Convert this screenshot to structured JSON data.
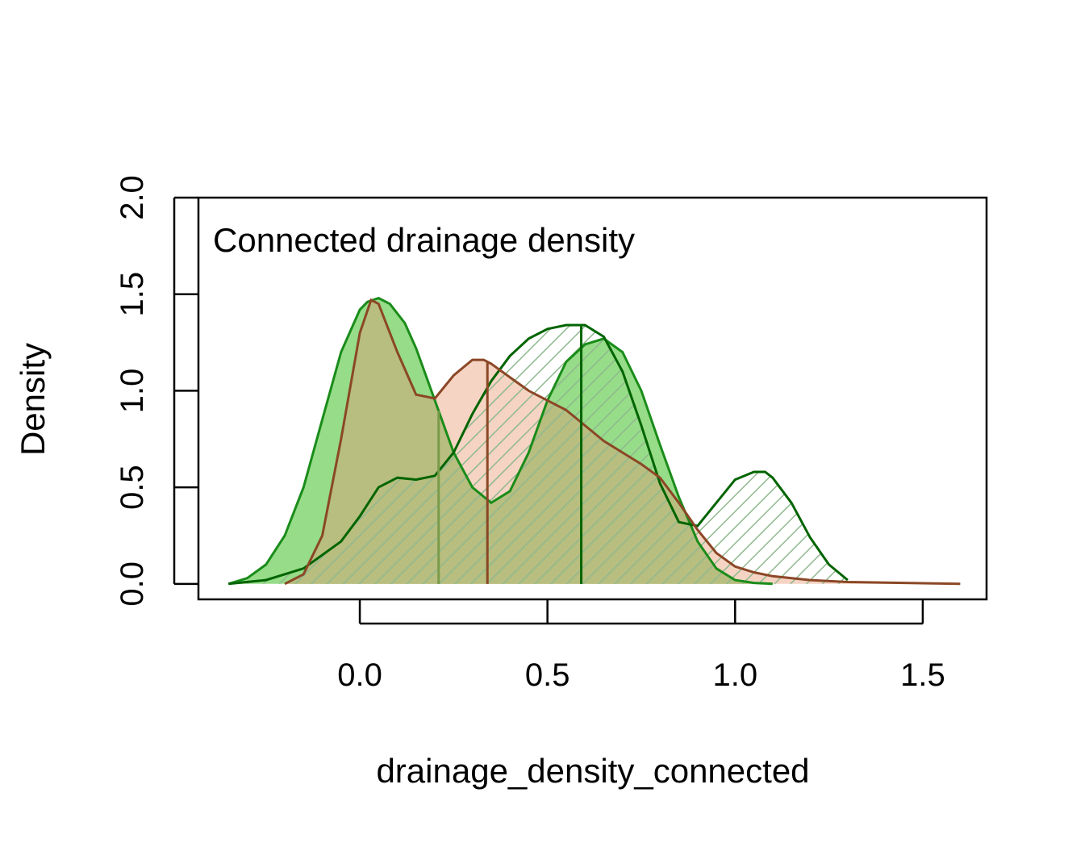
{
  "chart_data": {
    "type": "area",
    "title": "Connected drainage density",
    "xlabel": "drainage_density_connected",
    "ylabel": "Density",
    "xlim": [
      -0.43,
      1.67
    ],
    "ylim": [
      -0.08,
      2.0
    ],
    "xticks": [
      0.0,
      0.5,
      1.0,
      1.5
    ],
    "xtick_labels": [
      "0.0",
      "0.5",
      "1.0",
      "1.5"
    ],
    "yticks": [
      0.0,
      0.5,
      1.0,
      1.5,
      2.0
    ],
    "ytick_labels": [
      "0.0",
      "0.5",
      "1.0",
      "1.5",
      "2.0"
    ],
    "legend": "none",
    "grid": false,
    "colors": {
      "green_dark": "#1a8c1a",
      "green_fill": "#7dd36a",
      "dark_green": "#006400",
      "hatch_green": "#8fb88f",
      "brown": "#8b4726",
      "brown_fill": "#f3cdb8",
      "olive_overlap": "#b7be7f",
      "olive_line": "#7a9a4a"
    },
    "series": [
      {
        "style": "solid green fill",
        "line_color": "#1a8c1a",
        "fill_color": "#7dd36a",
        "x": [
          -0.35,
          -0.3,
          -0.25,
          -0.2,
          -0.15,
          -0.1,
          -0.05,
          0.0,
          0.02,
          0.05,
          0.08,
          0.12,
          0.15,
          0.2,
          0.25,
          0.3,
          0.35,
          0.4,
          0.45,
          0.5,
          0.55,
          0.6,
          0.65,
          0.7,
          0.75,
          0.8,
          0.85,
          0.9,
          0.95,
          1.0,
          1.05,
          1.1
        ],
        "y": [
          0.0,
          0.03,
          0.1,
          0.25,
          0.5,
          0.85,
          1.2,
          1.42,
          1.46,
          1.48,
          1.45,
          1.35,
          1.22,
          0.95,
          0.68,
          0.5,
          0.42,
          0.48,
          0.68,
          0.95,
          1.15,
          1.24,
          1.27,
          1.2,
          1.0,
          0.72,
          0.45,
          0.22,
          0.08,
          0.02,
          0.005,
          0.0
        ],
        "median": 0.21
      },
      {
        "style": "hatched dark green",
        "line_color": "#006400",
        "fill_color": "#8fb88f",
        "x": [
          -0.35,
          -0.25,
          -0.15,
          -0.05,
          0.0,
          0.05,
          0.1,
          0.15,
          0.2,
          0.25,
          0.3,
          0.35,
          0.4,
          0.45,
          0.5,
          0.55,
          0.6,
          0.65,
          0.7,
          0.75,
          0.8,
          0.85,
          0.9,
          0.95,
          1.0,
          1.05,
          1.08,
          1.1,
          1.15,
          1.2,
          1.25,
          1.3
        ],
        "y": [
          0.0,
          0.02,
          0.08,
          0.22,
          0.35,
          0.5,
          0.55,
          0.54,
          0.56,
          0.68,
          0.88,
          1.05,
          1.18,
          1.27,
          1.32,
          1.34,
          1.34,
          1.28,
          1.1,
          0.82,
          0.52,
          0.32,
          0.3,
          0.42,
          0.54,
          0.58,
          0.58,
          0.55,
          0.42,
          0.24,
          0.1,
          0.02
        ],
        "median": 0.59
      },
      {
        "style": "light salmon fill",
        "line_color": "#8b4726",
        "fill_color": "#f3cdb8",
        "x": [
          -0.2,
          -0.15,
          -0.1,
          -0.05,
          0.0,
          0.03,
          0.05,
          0.1,
          0.15,
          0.2,
          0.25,
          0.3,
          0.33,
          0.35,
          0.4,
          0.45,
          0.5,
          0.55,
          0.6,
          0.65,
          0.7,
          0.75,
          0.8,
          0.85,
          0.9,
          0.95,
          1.0,
          1.05,
          1.1,
          1.2,
          1.3,
          1.45,
          1.6
        ],
        "y": [
          0.0,
          0.05,
          0.25,
          0.75,
          1.3,
          1.47,
          1.45,
          1.2,
          0.98,
          0.96,
          1.08,
          1.16,
          1.16,
          1.14,
          1.07,
          1.0,
          0.95,
          0.9,
          0.82,
          0.74,
          0.68,
          0.62,
          0.55,
          0.42,
          0.28,
          0.16,
          0.09,
          0.06,
          0.04,
          0.02,
          0.01,
          0.005,
          0.0
        ],
        "median": 0.34
      }
    ]
  }
}
